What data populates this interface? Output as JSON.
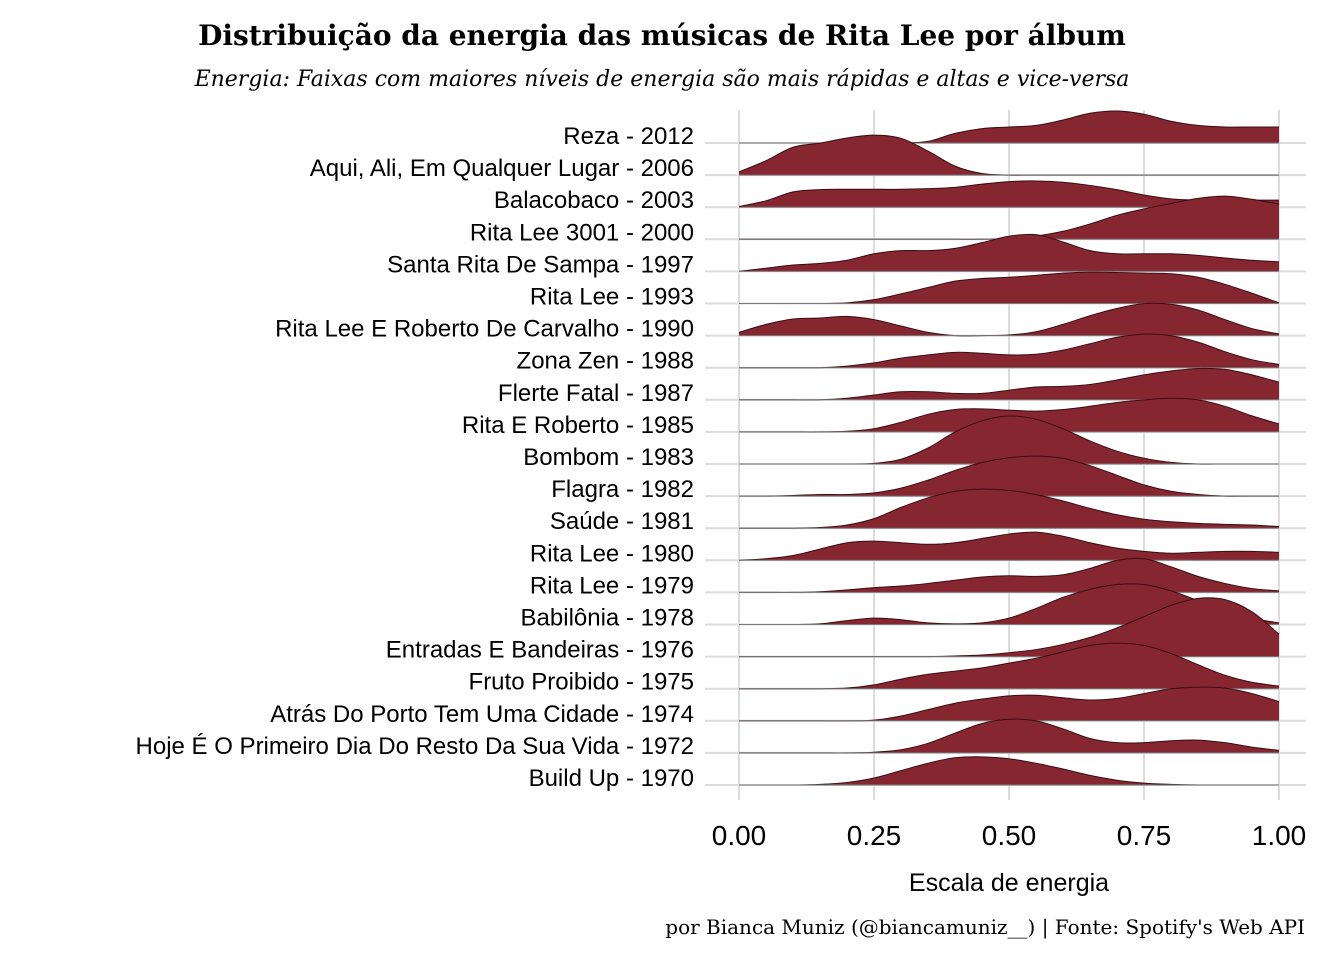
{
  "chart_data": {
    "type": "ridgeline",
    "title": "Distribuição da energia das músicas de Rita Lee por álbum",
    "subtitle": "Energia: Faixas com maiores níveis de energia são mais rápidas e altas e vice-versa",
    "xlabel": "Escala de energia",
    "caption": "por Bianca Muniz (@biancamuniz__) | Fonte: Spotify's Web API",
    "xlim": [
      0,
      1
    ],
    "x_ticks": [
      "0.00",
      "0.25",
      "0.50",
      "0.75",
      "1.00"
    ],
    "grid": true,
    "fill_color": "#862631",
    "outline_color": "#3a0d12",
    "baseline_color": "#7a7a7a",
    "x": [
      0.0,
      0.05,
      0.1,
      0.15,
      0.2,
      0.25,
      0.3,
      0.35,
      0.4,
      0.45,
      0.5,
      0.55,
      0.6,
      0.65,
      0.7,
      0.75,
      0.8,
      0.85,
      0.9,
      0.95,
      1.0
    ],
    "series": [
      {
        "name": "Reza - 2012",
        "values": [
          0,
          0,
          0,
          0,
          0,
          0,
          0,
          0.05,
          0.3,
          0.45,
          0.5,
          0.55,
          0.72,
          0.93,
          1.0,
          0.9,
          0.68,
          0.55,
          0.5,
          0.5,
          0.5
        ]
      },
      {
        "name": "Aqui, Ali, Em Qualquer Lugar - 2006",
        "values": [
          0.1,
          0.45,
          0.87,
          1.0,
          1.16,
          1.25,
          1.15,
          0.75,
          0.28,
          0.05,
          0,
          0,
          0,
          0,
          0,
          0,
          0,
          0,
          0,
          0,
          0
        ]
      },
      {
        "name": "Balacobaco - 2003",
        "values": [
          0.02,
          0.2,
          0.48,
          0.55,
          0.56,
          0.56,
          0.56,
          0.58,
          0.62,
          0.72,
          0.8,
          0.82,
          0.78,
          0.68,
          0.55,
          0.38,
          0.26,
          0.22,
          0.22,
          0.22,
          0.22
        ]
      },
      {
        "name": "Rita Lee 3001 - 2000",
        "values": [
          0,
          0,
          0,
          0,
          0,
          0,
          0,
          0,
          0,
          0,
          0.02,
          0.1,
          0.25,
          0.48,
          0.75,
          0.95,
          1.12,
          1.28,
          1.35,
          1.25,
          1.1
        ]
      },
      {
        "name": "Santa Rita De Sampa - 1997",
        "values": [
          0,
          0.1,
          0.2,
          0.25,
          0.35,
          0.55,
          0.65,
          0.65,
          0.72,
          0.9,
          1.1,
          1.15,
          0.92,
          0.65,
          0.55,
          0.55,
          0.55,
          0.5,
          0.42,
          0.35,
          0.3
        ]
      },
      {
        "name": "Rita Lee - 1993",
        "values": [
          0,
          0,
          0,
          0,
          0.02,
          0.12,
          0.3,
          0.5,
          0.7,
          0.78,
          0.82,
          0.88,
          0.95,
          0.98,
          0.97,
          0.95,
          0.93,
          0.82,
          0.6,
          0.32,
          0.02
        ]
      },
      {
        "name": "Rita Lee E Roberto De Carvalho - 1990",
        "values": [
          0.1,
          0.35,
          0.52,
          0.55,
          0.6,
          0.5,
          0.3,
          0.1,
          0.0,
          0.0,
          0.02,
          0.12,
          0.35,
          0.62,
          0.85,
          1.0,
          0.98,
          0.8,
          0.5,
          0.22,
          0.05
        ]
      },
      {
        "name": "Zona Zen - 1988",
        "values": [
          0,
          0,
          0,
          0,
          0.05,
          0.15,
          0.3,
          0.4,
          0.48,
          0.45,
          0.4,
          0.42,
          0.55,
          0.75,
          0.95,
          1.05,
          1.0,
          0.8,
          0.5,
          0.25,
          0.1
        ]
      },
      {
        "name": "Flerte Fatal - 1987",
        "values": [
          0,
          0,
          0,
          0,
          0.05,
          0.15,
          0.25,
          0.25,
          0.2,
          0.2,
          0.3,
          0.4,
          0.42,
          0.48,
          0.62,
          0.78,
          0.9,
          0.98,
          0.95,
          0.78,
          0.55
        ]
      },
      {
        "name": "Rita E Roberto - 1985",
        "values": [
          0,
          0,
          0,
          0,
          0.02,
          0.1,
          0.3,
          0.55,
          0.7,
          0.72,
          0.68,
          0.65,
          0.7,
          0.8,
          0.92,
          1.0,
          1.05,
          1.0,
          0.8,
          0.5,
          0.25
        ]
      },
      {
        "name": "Bombom - 1983",
        "values": [
          0,
          0,
          0,
          0,
          0,
          0.02,
          0.15,
          0.5,
          1.0,
          1.35,
          1.5,
          1.4,
          1.1,
          0.72,
          0.4,
          0.18,
          0.05,
          0,
          0,
          0,
          0
        ]
      },
      {
        "name": "Flagra - 1982",
        "values": [
          0,
          0,
          0.02,
          0.05,
          0.05,
          0.1,
          0.25,
          0.5,
          0.8,
          1.05,
          1.2,
          1.25,
          1.18,
          0.95,
          0.65,
          0.35,
          0.15,
          0.05,
          0,
          0,
          0
        ]
      },
      {
        "name": "Saúde - 1981",
        "values": [
          0,
          0,
          0,
          0.02,
          0.1,
          0.3,
          0.65,
          0.95,
          1.15,
          1.22,
          1.18,
          1.05,
          0.85,
          0.62,
          0.42,
          0.28,
          0.2,
          0.15,
          0.12,
          0.1,
          0.05
        ]
      },
      {
        "name": "Rita Lee - 1980",
        "values": [
          0,
          0.05,
          0.15,
          0.35,
          0.55,
          0.6,
          0.55,
          0.5,
          0.55,
          0.68,
          0.82,
          0.88,
          0.75,
          0.55,
          0.38,
          0.28,
          0.22,
          0.25,
          0.28,
          0.28,
          0.25
        ]
      },
      {
        "name": "Rita Lee - 1979",
        "values": [
          0,
          0,
          0,
          0.02,
          0.08,
          0.15,
          0.2,
          0.28,
          0.38,
          0.48,
          0.52,
          0.5,
          0.55,
          0.75,
          1.0,
          1.05,
          0.8,
          0.5,
          0.28,
          0.12,
          0.05
        ]
      },
      {
        "name": "Babilônia - 1978",
        "values": [
          0,
          0,
          0,
          0.02,
          0.12,
          0.2,
          0.15,
          0.05,
          0.02,
          0.05,
          0.2,
          0.5,
          0.85,
          1.1,
          1.25,
          1.25,
          1.05,
          0.75,
          0.45,
          0.2,
          0.05
        ]
      },
      {
        "name": "Entradas E Bandeiras - 1976",
        "values": [
          0,
          0,
          0,
          0,
          0,
          0,
          0,
          0,
          0.02,
          0.05,
          0.12,
          0.22,
          0.38,
          0.6,
          0.9,
          1.25,
          1.6,
          1.82,
          1.78,
          1.4,
          0.7
        ]
      },
      {
        "name": "Fruto Proibido - 1975",
        "values": [
          0,
          0,
          0,
          0,
          0.02,
          0.12,
          0.3,
          0.45,
          0.55,
          0.65,
          0.8,
          0.95,
          1.15,
          1.35,
          1.42,
          1.35,
          1.1,
          0.75,
          0.42,
          0.2,
          0.08
        ]
      },
      {
        "name": "Atrás Do Porto Tem Uma Cidade - 1974",
        "values": [
          0,
          0,
          0,
          0,
          0,
          0.02,
          0.15,
          0.35,
          0.55,
          0.68,
          0.78,
          0.8,
          0.72,
          0.65,
          0.7,
          0.85,
          1.0,
          1.05,
          1.02,
          0.85,
          0.6
        ]
      },
      {
        "name": "Hoje É O Primeiro Dia Do Resto Da Sua Vida - 1972",
        "values": [
          0,
          0,
          0,
          0,
          0,
          0.02,
          0.1,
          0.3,
          0.62,
          0.92,
          1.05,
          1.0,
          0.75,
          0.45,
          0.32,
          0.32,
          0.38,
          0.4,
          0.32,
          0.18,
          0.08
        ]
      },
      {
        "name": "Build Up - 1970",
        "values": [
          0,
          0,
          0,
          0.02,
          0.08,
          0.22,
          0.45,
          0.68,
          0.85,
          0.88,
          0.82,
          0.68,
          0.5,
          0.3,
          0.15,
          0.06,
          0.02,
          0,
          0,
          0,
          0
        ]
      }
    ]
  }
}
